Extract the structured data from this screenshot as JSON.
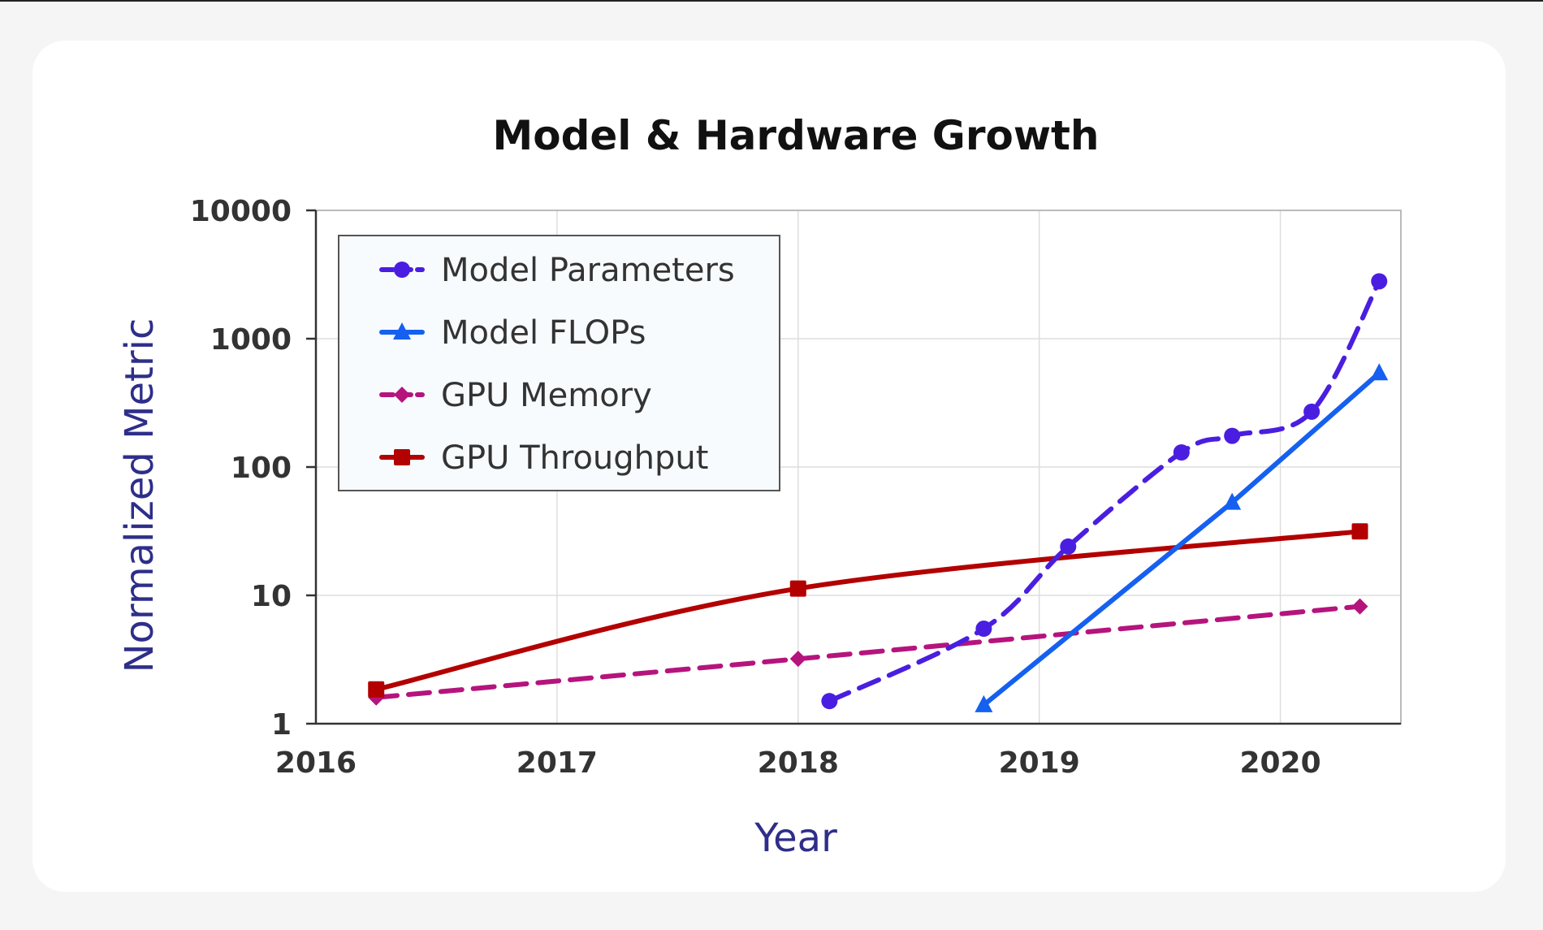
{
  "chart_data": {
    "type": "line",
    "title": "Model & Hardware Growth",
    "xlabel": "Year",
    "ylabel": "Normalized Metric",
    "yscale": "log",
    "xlim": [
      2016,
      2020.5
    ],
    "ylim": [
      1,
      10000
    ],
    "x_ticks": [
      2016,
      2017,
      2018,
      2019,
      2020
    ],
    "y_ticks": [
      1,
      10,
      100,
      1000,
      10000
    ],
    "x_tick_labels": [
      "2016",
      "2017",
      "2018",
      "2019",
      "2020"
    ],
    "y_tick_labels": [
      "1",
      "10",
      "100",
      "1000",
      "10000"
    ],
    "grid": true,
    "legend_position": "top-left",
    "series": [
      {
        "name": "Model Parameters",
        "color": "#4a1ee0",
        "line": "dashed",
        "marker": "circle",
        "curve": "smooth",
        "x": [
          2018.13,
          2018.77,
          2019.12,
          2019.59,
          2019.8,
          2020.13,
          2020.41
        ],
        "y": [
          1.5,
          5.5,
          24,
          130,
          175,
          270,
          2800
        ]
      },
      {
        "name": "Model FLOPs",
        "color": "#1560f0",
        "line": "solid",
        "marker": "triangle",
        "curve": "straight",
        "x": [
          2018.77,
          2019.8,
          2020.41
        ],
        "y": [
          1.4,
          53,
          540
        ]
      },
      {
        "name": "GPU Memory",
        "color": "#b5147d",
        "line": "dashed",
        "marker": "diamond",
        "curve": "smooth",
        "x": [
          2016.25,
          2018.0,
          2020.33
        ],
        "y": [
          1.6,
          3.2,
          8.2
        ]
      },
      {
        "name": "GPU Throughput",
        "color": "#b30000",
        "line": "solid",
        "marker": "square",
        "curve": "smooth",
        "x": [
          2016.25,
          2018.0,
          2020.33
        ],
        "y": [
          1.85,
          11.3,
          31.5
        ]
      }
    ]
  }
}
